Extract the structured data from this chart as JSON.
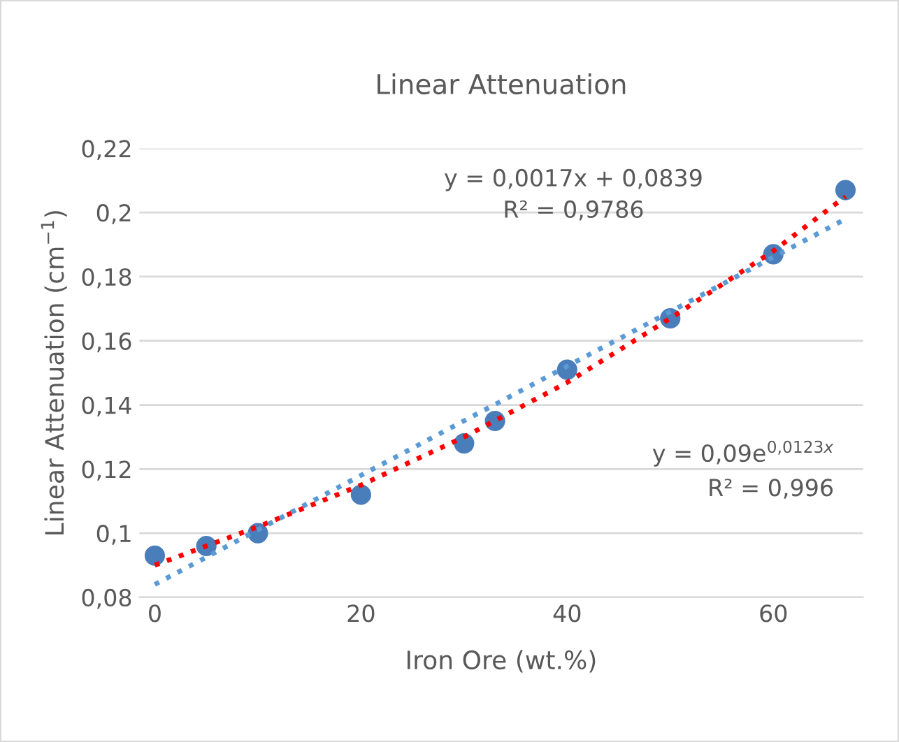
{
  "chart_data": {
    "type": "scatter",
    "title": "Linear Attenuation",
    "xlabel": "Iron Ore (wt.%)",
    "ylabel": "Linear Attenuation (cm$^{−1}$)",
    "xlim": [
      -1.5,
      68.7
    ],
    "xticks": [
      0,
      20,
      40,
      60
    ],
    "ylim": [
      0.08,
      0.22
    ],
    "yticks": [
      {
        "value": 0.08,
        "label": "0,08"
      },
      {
        "value": 0.1,
        "label": "0,1"
      },
      {
        "value": 0.12,
        "label": "0,12"
      },
      {
        "value": 0.14,
        "label": "0,14"
      },
      {
        "value": 0.16,
        "label": "0,16"
      },
      {
        "value": 0.18,
        "label": "0,18"
      },
      {
        "value": 0.2,
        "label": "0,2"
      },
      {
        "value": 0.22,
        "label": "0,22"
      }
    ],
    "grid": "y",
    "legend": false,
    "series": [
      {
        "marker": "circle",
        "color": "#4a7ebb",
        "x": [
          0,
          5,
          10,
          20,
          30,
          33,
          40,
          50,
          60,
          67
        ],
        "values": [
          0.093,
          0.096,
          0.1,
          0.112,
          0.128,
          0.135,
          0.151,
          0.167,
          0.187,
          0.207
        ]
      },
      {
        "type": "line",
        "color": "#5b9bd5",
        "line_style": "dotted",
        "x": [
          0,
          67
        ],
        "values": [
          0.084,
          0.198
        ]
      },
      {
        "type": "line",
        "color": "#ff0000",
        "line_style": "dotted",
        "x": [
          0,
          10,
          20,
          30,
          40,
          50,
          60,
          67
        ],
        "values": [
          0.09,
          0.102,
          0.115,
          0.13,
          0.147,
          0.167,
          0.188,
          0.205
        ]
      }
    ],
    "annotations": [
      "y = 0,0017x + 0,0839",
      "R² = 0,9786",
      "y = 0,09e$^{0,0123x}$",
      "R² = 0,996"
    ]
  }
}
